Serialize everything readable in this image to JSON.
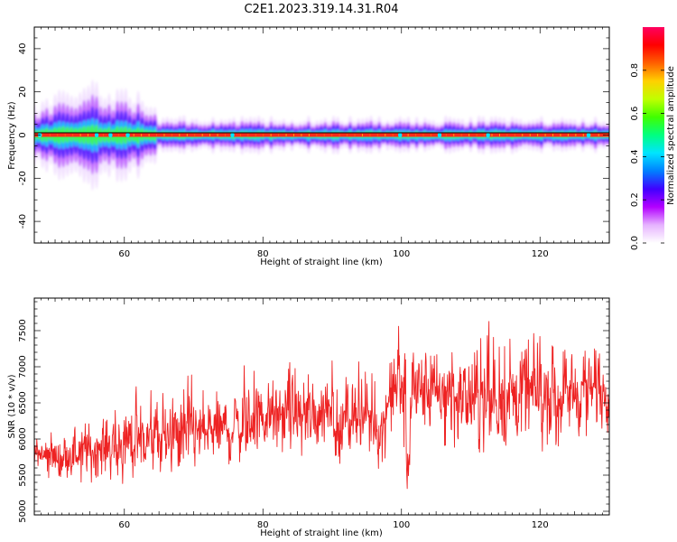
{
  "title": "C2E1.2023.319.14.31.R04",
  "chart_data": [
    {
      "type": "heatmap",
      "xlabel": "Height of straight line (km)",
      "ylabel": "Frequency (Hz)",
      "xlim": [
        47,
        130
      ],
      "ylim": [
        -50,
        50
      ],
      "xticks": [
        60,
        80,
        100,
        120
      ],
      "yticks": [
        -40,
        -20,
        0,
        20,
        40
      ],
      "colorbar": {
        "label": "Normalized spectral amplitude",
        "range": [
          0,
          1
        ],
        "ticks": [
          "0.0",
          "0.2",
          "0.4",
          "0.6",
          "0.8"
        ],
        "colors": [
          "#ffffff",
          "#e6b3ff",
          "#b300ff",
          "#4000ff",
          "#0080ff",
          "#00e5ff",
          "#00ff80",
          "#40ff00",
          "#c0ff00",
          "#ffd000",
          "#ff6000",
          "#ff0000",
          "#ff0060"
        ]
      },
      "grid": false,
      "note": "Energy concentrated near 0 Hz across all heights; spread up to about ±5 Hz between 48-65 km."
    },
    {
      "type": "line",
      "xlabel": "Height of straight line (km)",
      "ylabel": "SNR (10 * v/v)",
      "xlim": [
        47,
        130
      ],
      "ylim": [
        4950,
        7950
      ],
      "xticks": [
        60,
        80,
        100,
        120
      ],
      "yticks": [
        5000,
        5500,
        6000,
        6500,
        7000,
        7500
      ],
      "color": "#ee2222",
      "grid": false,
      "series": [
        {
          "x": [
            47,
            50,
            55,
            60,
            65,
            70,
            75,
            80,
            85,
            88,
            90,
            91,
            92,
            95,
            97,
            98,
            99,
            100,
            100.5,
            101,
            101.5,
            102,
            105,
            110,
            115,
            120,
            125,
            130
          ],
          "mean": [
            5800,
            5750,
            5850,
            5950,
            6000,
            6050,
            6150,
            6300,
            6350,
            6350,
            6550,
            6000,
            6350,
            6350,
            6050,
            6500,
            6700,
            6750,
            6550,
            5300,
            6900,
            6700,
            6600,
            6550,
            6550,
            6650,
            6650,
            6700
          ],
          "max": [
            6100,
            6200,
            6450,
            6750,
            6900,
            7100,
            7200,
            7300,
            7200,
            7300,
            7450,
            6600,
            7200,
            7300,
            6800,
            7550,
            7800,
            7800,
            7900,
            6900,
            8000,
            7600,
            7500,
            7650,
            7800,
            7650,
            7500,
            7400
          ],
          "min": [
            5400,
            5300,
            5200,
            5300,
            5400,
            5400,
            5600,
            5700,
            5700,
            5700,
            5900,
            5400,
            5700,
            5700,
            5400,
            5700,
            5800,
            5900,
            5400,
            5000,
            5600,
            5700,
            5600,
            5500,
            5500,
            5600,
            5600,
            5900
          ]
        }
      ]
    }
  ]
}
